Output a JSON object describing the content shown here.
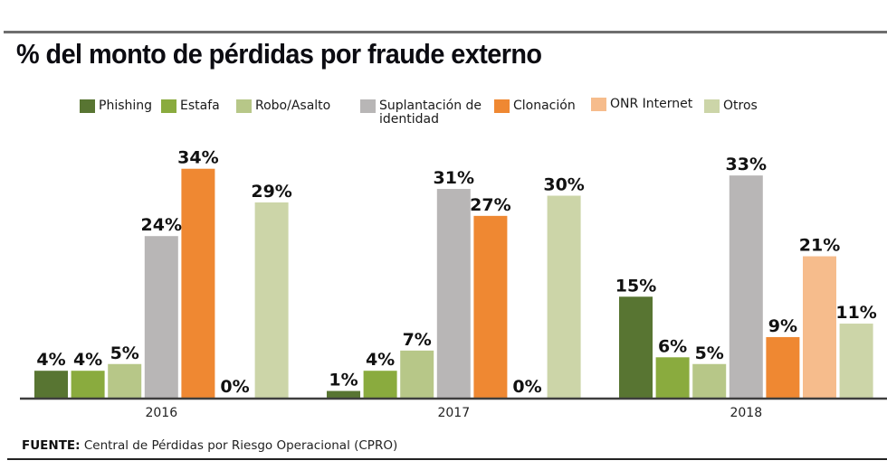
{
  "title": "% del monto de pérdidas por fraude externo",
  "source": {
    "label": "FUENTE:",
    "text": "Central de Pérdidas por Riesgo Operacional (CPRO)"
  },
  "chart_data": {
    "type": "bar",
    "title": "% del monto de pérdidas por fraude externo",
    "xlabel": "",
    "ylabel": "",
    "ylim": [
      0,
      35
    ],
    "grid": false,
    "legend_position": "top",
    "categories": [
      "2016",
      "2017",
      "2018"
    ],
    "series": [
      {
        "name": "Phishing",
        "color": "#587532",
        "values": [
          4,
          1,
          15
        ],
        "labels": [
          "4%",
          "1%",
          "15%"
        ]
      },
      {
        "name": "Estafa",
        "color": "#8aab3e",
        "values": [
          4,
          4,
          6
        ],
        "labels": [
          "4%",
          "4%",
          "6%"
        ]
      },
      {
        "name": "Robo/Asalto",
        "color": "#b7c788",
        "values": [
          5,
          7,
          5
        ],
        "labels": [
          "5%",
          "7%",
          "5%"
        ]
      },
      {
        "name": "Suplantación de\nidentidad",
        "color": "#b8b6b6",
        "values": [
          24,
          31,
          33
        ],
        "labels": [
          "24%",
          "31%",
          "33%"
        ]
      },
      {
        "name": "Clonación",
        "color": "#ef8832",
        "values": [
          34,
          27,
          9
        ],
        "labels": [
          "34%",
          "27%",
          "9%"
        ]
      },
      {
        "name": "ONR Internet",
        "color": "#f6bc8c",
        "values": [
          0,
          0,
          21
        ],
        "labels": [
          "0%",
          "0%",
          "21%"
        ]
      },
      {
        "name": "Otros",
        "color": "#ccd5a8",
        "values": [
          29,
          30,
          11
        ],
        "labels": [
          "29%",
          "30%",
          "11%"
        ]
      }
    ]
  }
}
